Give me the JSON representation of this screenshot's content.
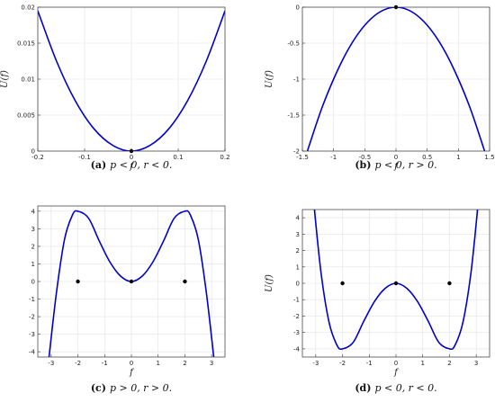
{
  "chart_data": [
    {
      "type": "line",
      "panel": "a",
      "caption_letter": "(a)",
      "caption_text": "p < 0, r < 0.",
      "xlabel": "f",
      "ylabel": "U(f)",
      "xlim": [
        -0.2,
        0.2
      ],
      "ylim": [
        0,
        0.02
      ],
      "xticks": [
        -0.2,
        -0.1,
        0,
        0.1,
        0.2
      ],
      "xtick_labels": [
        "-0.2",
        "-0.1",
        "0",
        "0.1",
        "0.2"
      ],
      "yticks": [
        0,
        0.005,
        0.01,
        0.015,
        0.02
      ],
      "ytick_labels": [
        "0",
        "0.005",
        "0.01",
        "0.015",
        "0.02"
      ],
      "grid": true,
      "color": "#0000cc",
      "series": [
        {
          "x": [
            -0.2,
            -0.16,
            -0.12,
            -0.08,
            -0.04,
            0,
            0.04,
            0.08,
            0.12,
            0.16,
            0.2
          ],
          "y": [
            0.0195,
            0.0125,
            0.007,
            0.0031,
            0.0008,
            0,
            0.0008,
            0.0031,
            0.007,
            0.0125,
            0.0195
          ]
        }
      ],
      "points": [
        {
          "x": 0,
          "y": 0
        }
      ]
    },
    {
      "type": "line",
      "panel": "b",
      "caption_letter": "(b)",
      "caption_text": "p < 0, r > 0.",
      "xlabel": "f",
      "ylabel": "U(f)",
      "xlim": [
        -1.5,
        1.5
      ],
      "ylim": [
        -2,
        0
      ],
      "xticks": [
        -1.5,
        -1,
        -0.5,
        0,
        0.5,
        1,
        1.5
      ],
      "xtick_labels": [
        "-1.5",
        "-1",
        "-0.5",
        "0",
        "0.5",
        "1",
        "1.5"
      ],
      "yticks": [
        -2,
        -1.5,
        -1,
        -0.5,
        0
      ],
      "ytick_labels": [
        "-2",
        "-1.5",
        "-1",
        "-0.5",
        "0"
      ],
      "grid": true,
      "color": "#0000cc",
      "series": [
        {
          "x": [
            -1.42,
            -1.2,
            -1,
            -0.8,
            -0.6,
            -0.4,
            -0.2,
            0,
            0.2,
            0.4,
            0.6,
            0.8,
            1,
            1.2,
            1.42
          ],
          "y": [
            -2.0,
            -1.43,
            -1.0,
            -0.64,
            -0.36,
            -0.16,
            -0.04,
            0,
            -0.04,
            -0.16,
            -0.36,
            -0.64,
            -1.0,
            -1.43,
            -2.0
          ]
        }
      ],
      "points": [
        {
          "x": 0,
          "y": 0
        }
      ]
    },
    {
      "type": "line",
      "panel": "c",
      "caption_letter": "(c)",
      "caption_text": "p > 0, r > 0.",
      "xlabel": "f",
      "ylabel": "",
      "xlim": [
        -3.5,
        3.5
      ],
      "ylim": [
        -4.3,
        4.3
      ],
      "xticks": [
        -3,
        -2,
        -1,
        0,
        1,
        2,
        3
      ],
      "xtick_labels": [
        "-3",
        "-2",
        "-1",
        "0",
        "1",
        "2",
        "3"
      ],
      "yticks": [
        -4,
        -3,
        -2,
        -1,
        0,
        1,
        2,
        3,
        4
      ],
      "ytick_labels": [
        "-4",
        "-3",
        "-2",
        "-1",
        "0",
        "1",
        "2",
        "3",
        "4"
      ],
      "grid": true,
      "color": "#0000cc",
      "series": [
        {
          "x": [
            -3.08,
            -2.8,
            -2.5,
            -2.2,
            -2,
            -1.6,
            -1.2,
            -0.8,
            -0.4,
            0,
            0.4,
            0.8,
            1.2,
            1.6,
            2,
            2.2,
            2.5,
            2.8,
            3.08
          ],
          "y": [
            -4.3,
            -0.6,
            2.4,
            3.8,
            4.0,
            3.6,
            2.3,
            1.1,
            0.3,
            0,
            0.3,
            1.1,
            2.3,
            3.6,
            4.0,
            3.8,
            2.4,
            -0.6,
            -4.3
          ]
        }
      ],
      "points": [
        {
          "x": -2,
          "y": 0
        },
        {
          "x": 0,
          "y": 0
        },
        {
          "x": 2,
          "y": 0
        }
      ]
    },
    {
      "type": "line",
      "panel": "d",
      "caption_letter": "(d)",
      "caption_text": "p < 0, r < 0.",
      "xlabel": "f",
      "ylabel": "U(f)",
      "xlim": [
        -3.5,
        3.5
      ],
      "ylim": [
        -4.5,
        4.5
      ],
      "xticks": [
        -3,
        -2,
        -1,
        0,
        1,
        2,
        3
      ],
      "xtick_labels": [
        "-3",
        "-2",
        "-1",
        "0",
        "1",
        "2",
        "3"
      ],
      "yticks": [
        -4,
        -3,
        -2,
        -1,
        0,
        1,
        2,
        3,
        4
      ],
      "ytick_labels": [
        "-4",
        "-3",
        "-2",
        "-1",
        "0",
        "1",
        "2",
        "3",
        "4"
      ],
      "grid": true,
      "color": "#0000cc",
      "series": [
        {
          "x": [
            -3.05,
            -2.8,
            -2.5,
            -2.2,
            -2,
            -1.6,
            -1.2,
            -0.8,
            -0.4,
            0,
            0.4,
            0.8,
            1.2,
            1.6,
            2,
            2.2,
            2.5,
            2.8,
            3.05
          ],
          "y": [
            4.5,
            0.6,
            -2.4,
            -3.8,
            -4.0,
            -3.6,
            -2.3,
            -1.1,
            -0.3,
            0,
            -0.3,
            -1.1,
            -2.3,
            -3.6,
            -4.0,
            -3.8,
            -2.4,
            0.6,
            4.5
          ]
        }
      ],
      "points": [
        {
          "x": -2,
          "y": 0
        },
        {
          "x": 0,
          "y": 0
        },
        {
          "x": 2,
          "y": 0
        }
      ]
    }
  ]
}
